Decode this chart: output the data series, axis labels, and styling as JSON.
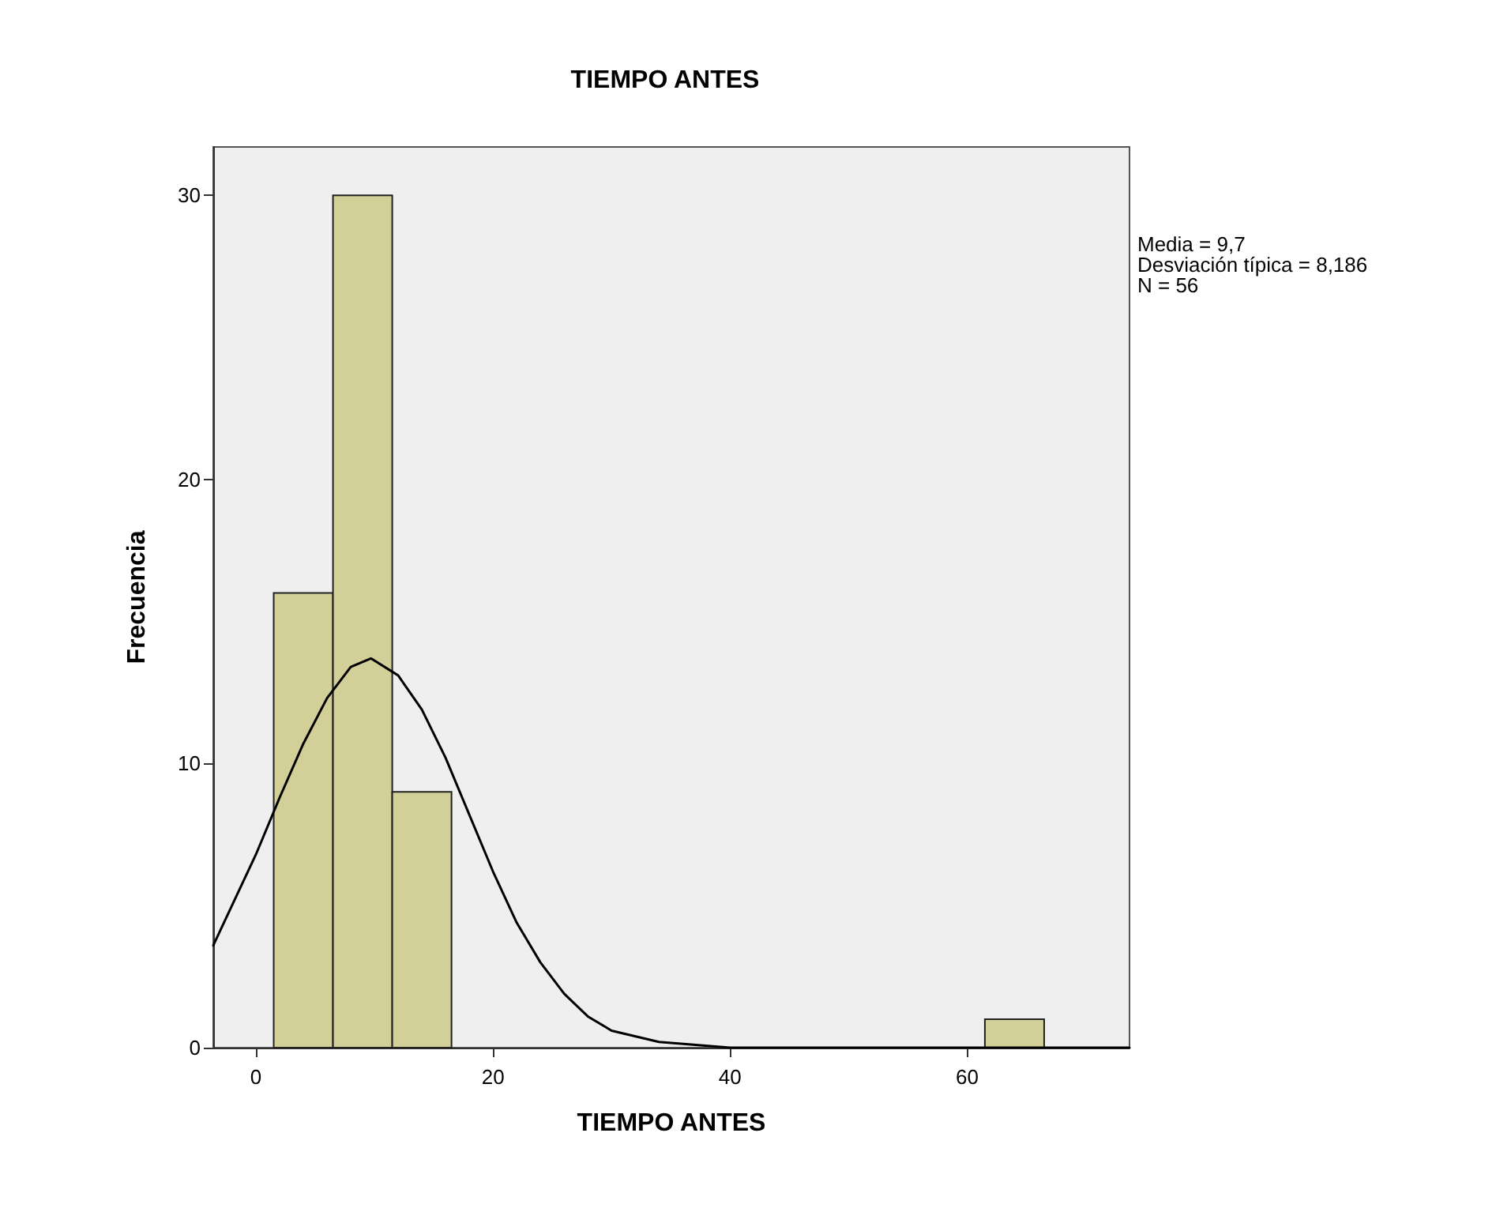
{
  "chart_data": {
    "type": "histogram",
    "title": "TIEMPO ANTES",
    "xlabel": "TIEMPO ANTES",
    "ylabel": "Frecuencia",
    "annotations": [
      "Media = 9,7",
      "Desviación típica = 8,186",
      "N = 56"
    ],
    "bins": [
      1.5,
      6.5,
      11.5,
      16.5,
      21.5,
      26.5,
      31.5,
      36.5,
      41.5,
      46.5,
      51.5,
      56.5,
      61.5,
      66.5
    ],
    "values": [
      16,
      30,
      9,
      0,
      0,
      0,
      0,
      0,
      0,
      0,
      0,
      0,
      1
    ],
    "color": "#d3cf99",
    "xlim": [
      -3.6,
      73.7
    ],
    "xticks": [
      0,
      20,
      40,
      60
    ],
    "ylim": [
      0,
      31.7
    ],
    "yticks": [
      0,
      10,
      20,
      30
    ],
    "grid": false,
    "series": [
      {
        "type": "line",
        "color": "#000000",
        "marker": "none",
        "line_style": "solid",
        "x": [
          -3.6,
          0,
          2,
          4,
          6,
          8,
          9.7,
          12,
          14,
          16,
          18,
          20,
          22,
          24,
          26,
          28,
          30,
          34,
          40,
          50,
          60,
          73.7
        ],
        "values": [
          3.6,
          6.8,
          8.8,
          10.7,
          12.3,
          13.4,
          13.7,
          13.1,
          11.9,
          10.2,
          8.2,
          6.2,
          4.4,
          3.0,
          1.9,
          1.1,
          0.6,
          0.2,
          0,
          0,
          0,
          0
        ]
      }
    ]
  }
}
